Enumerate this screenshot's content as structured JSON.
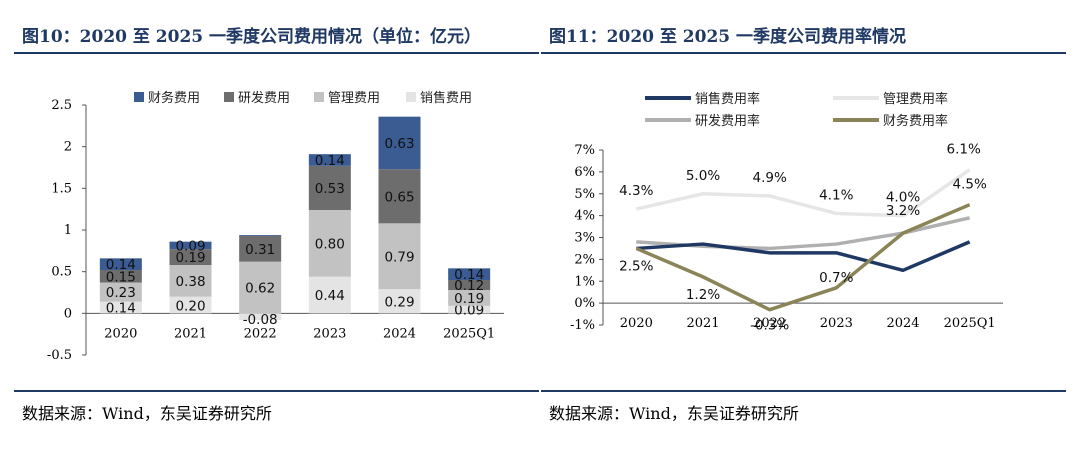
{
  "left": {
    "title": "图10：2020 至 2025 一季度公司费用情况（单位：亿元）",
    "source": "数据来源：Wind，东吴证券研究所"
  },
  "right": {
    "title": "图11：2020 至 2025 一季度公司费用率情况",
    "source": "数据来源：Wind，东吴证券研究所"
  },
  "chart_data": [
    {
      "type": "bar",
      "stacked": true,
      "categories": [
        "2020",
        "2021",
        "2022",
        "2023",
        "2024",
        "2025Q1"
      ],
      "ylim": [
        -0.5,
        2.5
      ],
      "yticks": [
        "-0.5",
        "0",
        "0.5",
        "1",
        "1.5",
        "2",
        "2.5"
      ],
      "ytick_values": [
        -0.5,
        0,
        0.5,
        1,
        1.5,
        2,
        2.5
      ],
      "legend_position": "top",
      "grid": false,
      "series": [
        {
          "name": "销售费用",
          "color": "#e4e4e4",
          "values": [
            0.14,
            0.2,
            -0.08,
            0.44,
            0.29,
            0.09
          ],
          "labels": [
            "0.14",
            "0.20",
            "-0.08",
            "0.44",
            "0.29",
            "0.09"
          ]
        },
        {
          "name": "管理费用",
          "color": "#c2c2c2",
          "values": [
            0.23,
            0.38,
            0.62,
            0.8,
            0.79,
            0.19
          ],
          "labels": [
            "0.23",
            "0.38",
            "0.62",
            "0.80",
            "0.79",
            "0.19"
          ]
        },
        {
          "name": "研发费用",
          "color": "#6d6d6d",
          "values": [
            0.15,
            0.19,
            0.31,
            0.53,
            0.65,
            0.12
          ],
          "labels": [
            "0.15",
            "0.19",
            "0.31",
            "0.53",
            "0.65",
            "0.12"
          ]
        },
        {
          "name": "财务费用",
          "color": "#3b5b93",
          "values": [
            0.14,
            0.09,
            0.01,
            0.14,
            0.63,
            0.14
          ],
          "labels": [
            "0.14",
            "0.09",
            "",
            "0.14",
            "0.63",
            "0.14"
          ]
        }
      ],
      "legend_order": [
        "财务费用",
        "研发费用",
        "管理费用",
        "销售费用"
      ]
    },
    {
      "type": "line",
      "categories": [
        "2020",
        "2021",
        "2022",
        "2023",
        "2024",
        "2025Q1"
      ],
      "ylim": [
        -1,
        7
      ],
      "yticks": [
        "-1%",
        "0%",
        "1%",
        "2%",
        "3%",
        "4%",
        "5%",
        "6%",
        "7%"
      ],
      "ytick_values": [
        -1,
        0,
        1,
        2,
        3,
        4,
        5,
        6,
        7
      ],
      "legend_position": "top",
      "grid": false,
      "series": [
        {
          "name": "销售费用率",
          "color": "#1f3864",
          "values": [
            2.5,
            2.7,
            2.3,
            2.3,
            1.5,
            2.8
          ]
        },
        {
          "name": "管理费用率",
          "color": "#e6e6e6",
          "values": [
            4.3,
            5.0,
            4.9,
            4.1,
            4.0,
            6.1
          ],
          "labels": [
            "4.3%",
            "5.0%",
            "4.9%",
            "4.1%",
            "4.0%",
            "6.1%"
          ]
        },
        {
          "name": "研发费用率",
          "color": "#b0b0b0",
          "values": [
            2.8,
            2.6,
            2.5,
            2.7,
            3.2,
            3.9
          ]
        },
        {
          "name": "财务费用率",
          "color": "#8b8458",
          "values": [
            2.5,
            1.2,
            -0.3,
            0.7,
            3.2,
            4.5
          ],
          "labels": [
            "2.5%",
            "1.2%",
            "-0.3%",
            "0.7%",
            "3.2%",
            "4.5%"
          ]
        }
      ]
    }
  ]
}
